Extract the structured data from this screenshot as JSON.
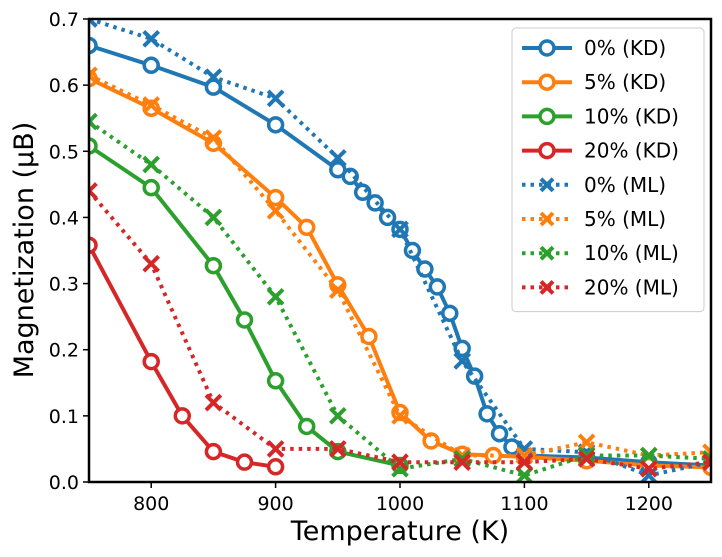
{
  "chart_data": {
    "type": "line",
    "xlabel": "Temperature (K)",
    "ylabel": "Magnetization (μB)",
    "xlim": [
      750,
      1250
    ],
    "ylim": [
      0.0,
      0.7
    ],
    "xticks": [
      800,
      900,
      1000,
      1100,
      1200
    ],
    "yticks": [
      0.0,
      0.1,
      0.2,
      0.3,
      0.4,
      0.5,
      0.6,
      0.7
    ],
    "grid": false,
    "legend_position": "top-right",
    "series": [
      {
        "name": "0% (KD)",
        "color": "#1f77b4",
        "style": "solid",
        "marker": "circle",
        "x": [
          750,
          800,
          850,
          900,
          950,
          960,
          970,
          980,
          990,
          1000,
          1010,
          1020,
          1030,
          1040,
          1050,
          1060,
          1070,
          1080,
          1090,
          1100,
          1150,
          1200,
          1250
        ],
        "y": [
          0.66,
          0.63,
          0.597,
          0.54,
          0.472,
          0.462,
          0.438,
          0.422,
          0.4,
          0.382,
          0.35,
          0.322,
          0.295,
          0.255,
          0.202,
          0.16,
          0.103,
          0.073,
          0.053,
          0.04,
          0.037,
          0.03,
          0.025
        ]
      },
      {
        "name": "5% (KD)",
        "color": "#ff7f0e",
        "style": "solid",
        "marker": "circle",
        "x": [
          750,
          800,
          850,
          900,
          925,
          950,
          975,
          1000,
          1025,
          1050,
          1075,
          1100,
          1150,
          1200,
          1250
        ],
        "y": [
          0.61,
          0.565,
          0.512,
          0.43,
          0.385,
          0.298,
          0.22,
          0.105,
          0.062,
          0.042,
          0.04,
          0.038,
          0.032,
          0.025,
          0.022
        ]
      },
      {
        "name": "10% (KD)",
        "color": "#2ca02c",
        "style": "solid",
        "marker": "circle",
        "x": [
          750,
          800,
          850,
          875,
          900,
          925,
          950,
          1000
        ],
        "y": [
          0.508,
          0.445,
          0.327,
          0.245,
          0.153,
          0.084,
          0.046,
          0.025
        ]
      },
      {
        "name": "20% (KD)",
        "color": "#d62728",
        "style": "solid",
        "marker": "circle",
        "x": [
          750,
          800,
          825,
          850,
          875,
          900
        ],
        "y": [
          0.358,
          0.182,
          0.1,
          0.046,
          0.03,
          0.023
        ]
      },
      {
        "name": "0% (ML)",
        "color": "#1f77b4",
        "style": "dotted",
        "marker": "x",
        "x": [
          750,
          800,
          850,
          900,
          950,
          1000,
          1050,
          1100,
          1150,
          1200,
          1250
        ],
        "y": [
          0.7,
          0.67,
          0.612,
          0.58,
          0.49,
          0.382,
          0.183,
          0.05,
          0.045,
          0.01,
          0.03
        ]
      },
      {
        "name": "5% (ML)",
        "color": "#ff7f0e",
        "style": "dotted",
        "marker": "x",
        "x": [
          750,
          800,
          850,
          900,
          950,
          1000,
          1050,
          1100,
          1150,
          1200,
          1250
        ],
        "y": [
          0.615,
          0.57,
          0.52,
          0.41,
          0.29,
          0.1,
          0.04,
          0.04,
          0.06,
          0.04,
          0.045
        ]
      },
      {
        "name": "10% (ML)",
        "color": "#2ca02c",
        "style": "dotted",
        "marker": "x",
        "x": [
          750,
          800,
          850,
          900,
          950,
          1000,
          1050,
          1100,
          1150,
          1200,
          1250
        ],
        "y": [
          0.545,
          0.48,
          0.4,
          0.28,
          0.1,
          0.02,
          0.035,
          0.01,
          0.04,
          0.04,
          0.035
        ]
      },
      {
        "name": "20% (ML)",
        "color": "#d62728",
        "style": "dotted",
        "marker": "x",
        "x": [
          750,
          800,
          850,
          900,
          950,
          1000,
          1050,
          1100,
          1150,
          1200,
          1250
        ],
        "y": [
          0.44,
          0.33,
          0.12,
          0.05,
          0.05,
          0.03,
          0.03,
          0.03,
          0.035,
          0.02,
          0.03
        ]
      }
    ]
  }
}
